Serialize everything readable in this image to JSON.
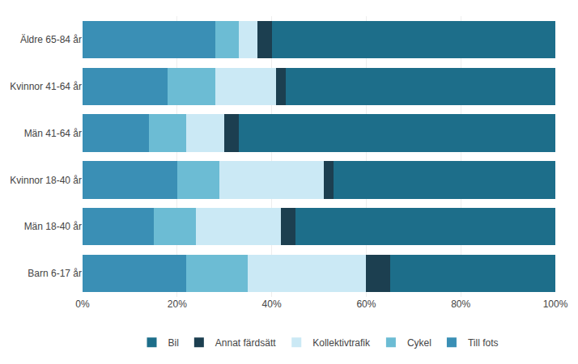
{
  "chart_data": {
    "type": "bar",
    "orientation": "horizontal",
    "stacked": true,
    "categories": [
      "Äldre 65-84 år",
      "Kvinnor 41-64 år",
      "Män 41-64 år",
      "Kvinnor 18-40 år",
      "Män 18-40 år",
      "Barn 6-17 år"
    ],
    "series": [
      {
        "name": "Till fots",
        "color": "#3a8fb5",
        "values": [
          28,
          18,
          14,
          20,
          15,
          22
        ]
      },
      {
        "name": "Cykel",
        "color": "#6cbcd4",
        "values": [
          5,
          10,
          8,
          9,
          9,
          13
        ]
      },
      {
        "name": "Kollektivtrafik",
        "color": "#cbe9f5",
        "values": [
          4,
          13,
          8,
          22,
          18,
          25
        ]
      },
      {
        "name": "Annat färdsätt",
        "color": "#1c3f50",
        "values": [
          3,
          2,
          3,
          2,
          3,
          5
        ]
      },
      {
        "name": "Bil",
        "color": "#1d6e8a",
        "values": [
          60,
          57,
          67,
          47,
          55,
          35
        ]
      }
    ],
    "xlim": [
      0,
      100
    ],
    "xticks": [
      {
        "value": 0,
        "label": "0%"
      },
      {
        "value": 20,
        "label": "20%"
      },
      {
        "value": 40,
        "label": "40%"
      },
      {
        "value": 60,
        "label": "60%"
      },
      {
        "value": 80,
        "label": "80%"
      },
      {
        "value": 100,
        "label": "100%"
      }
    ],
    "grid": true,
    "legend": "bottom"
  }
}
